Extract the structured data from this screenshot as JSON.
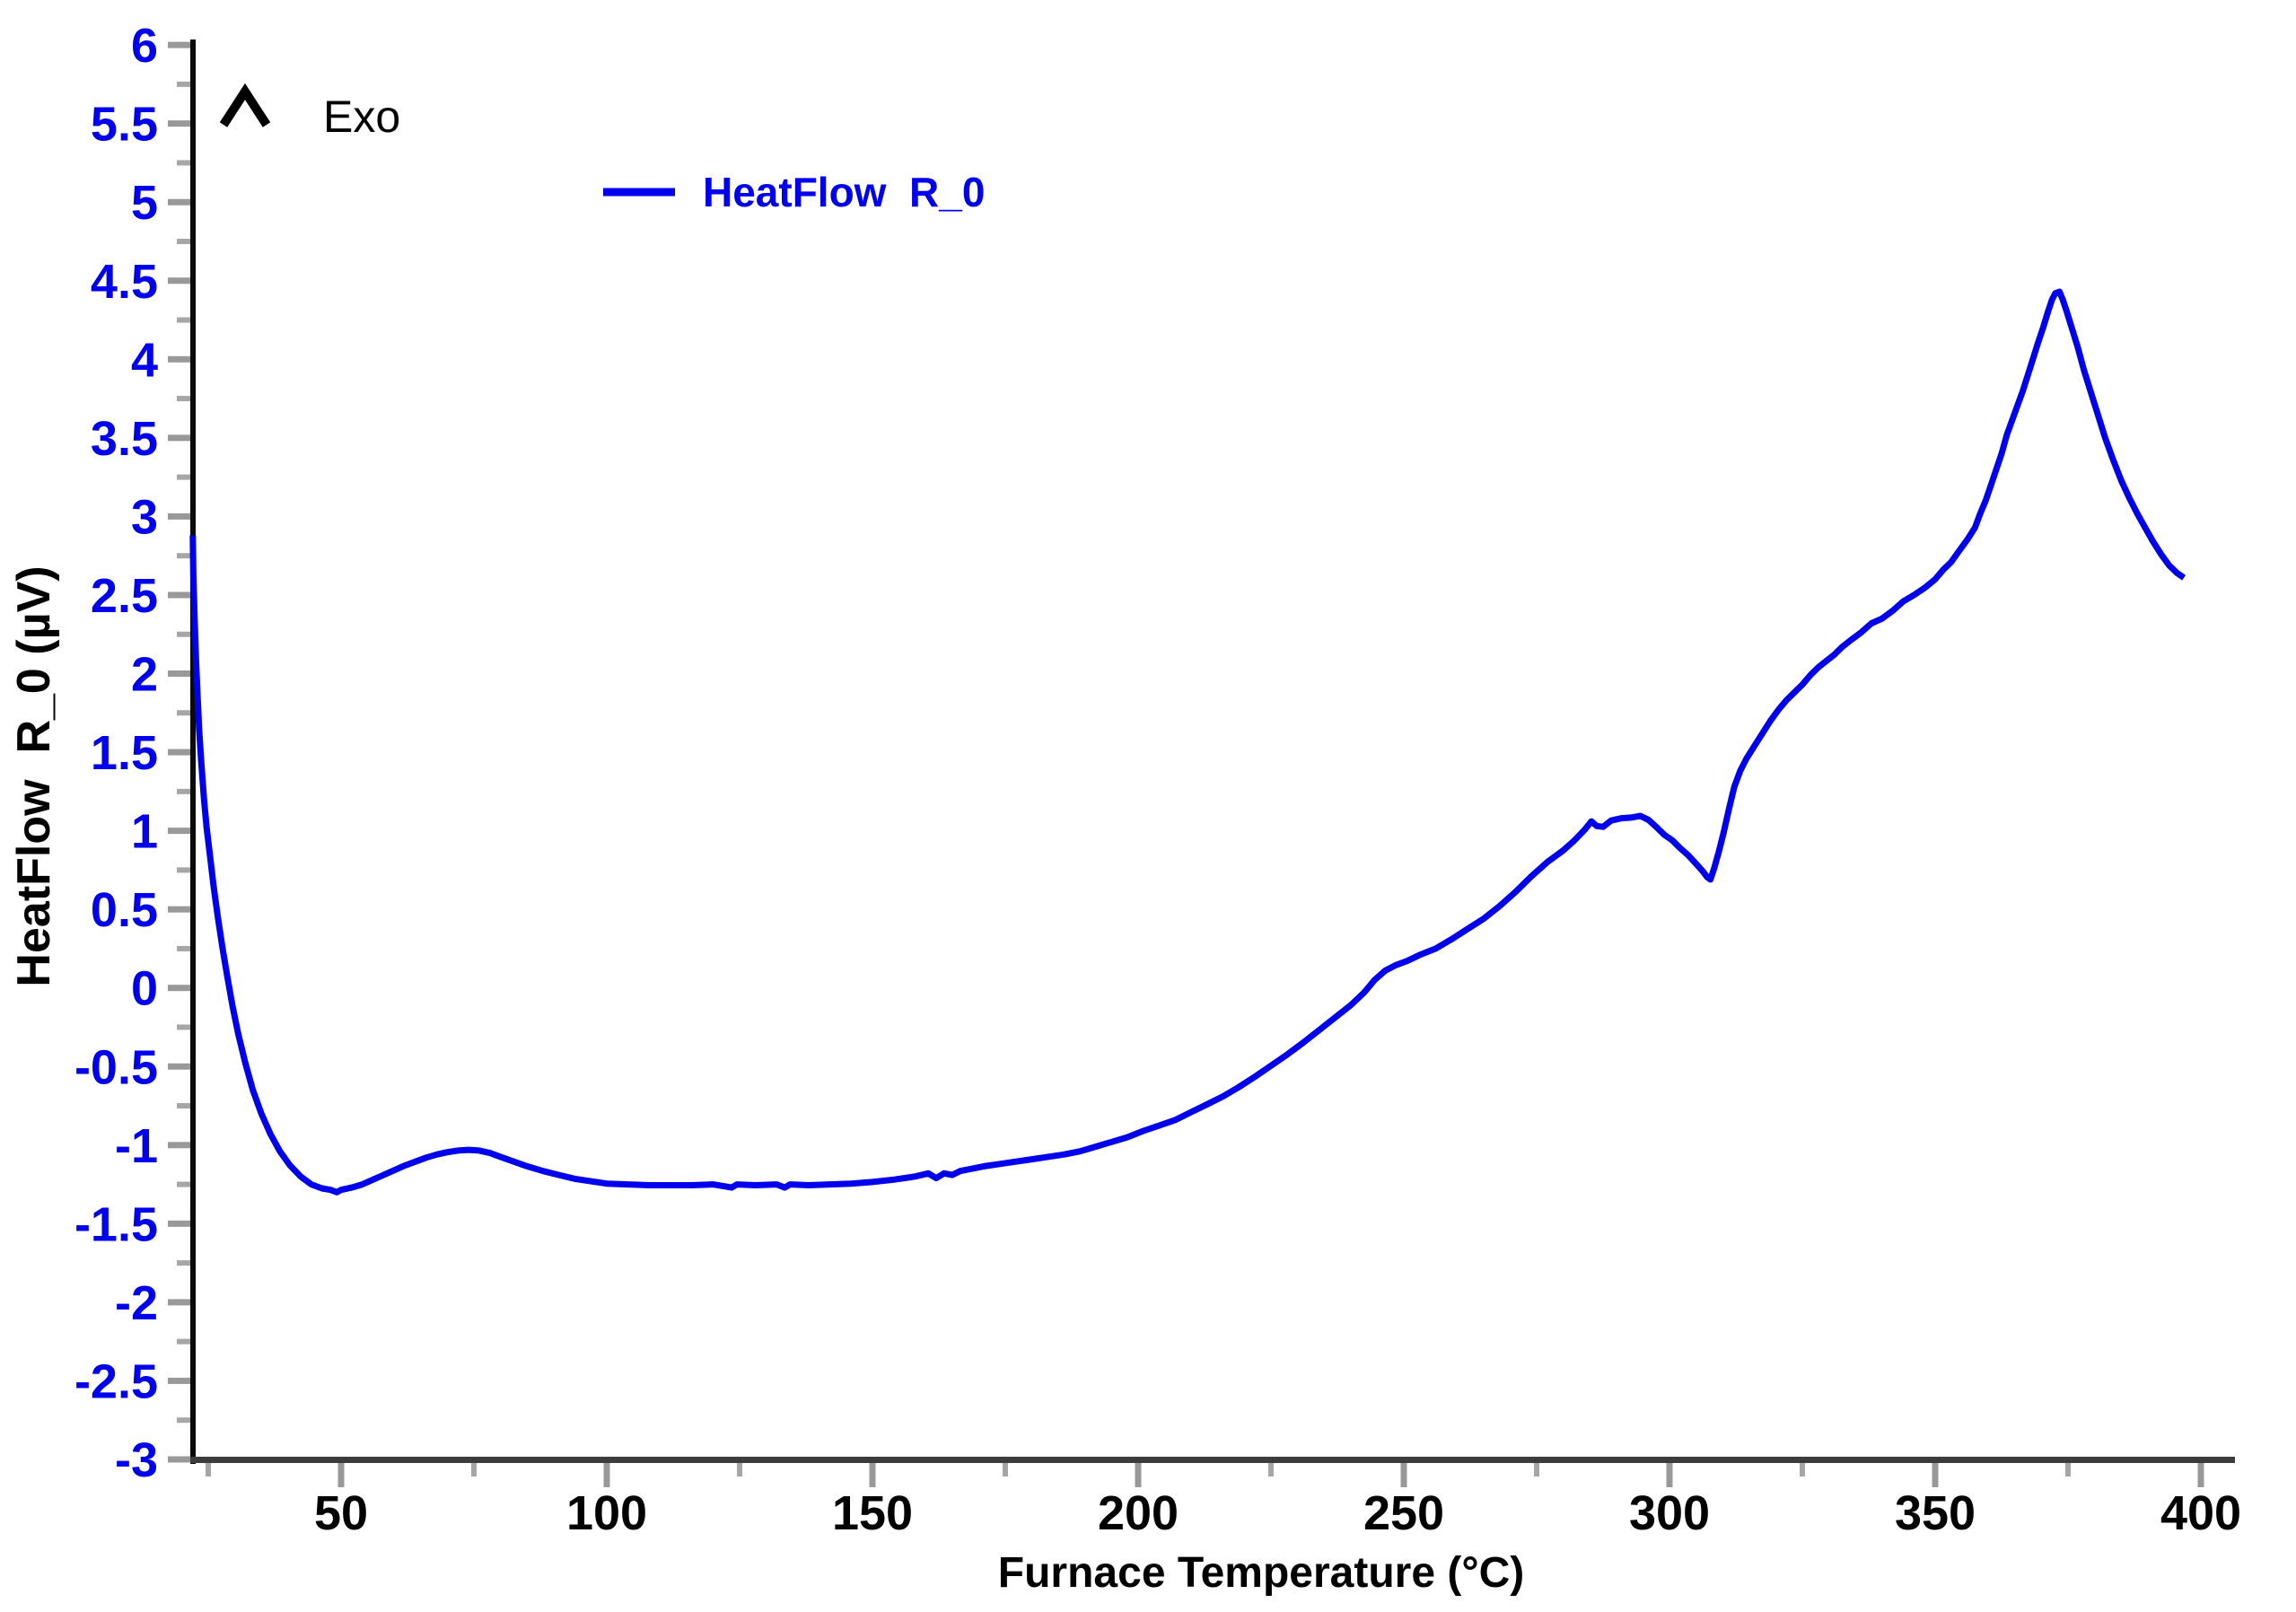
{
  "chart_data": {
    "type": "line",
    "title": "",
    "xlabel": "Furnace Temperature (°C)",
    "ylabel": "HeatFlow  R_0 (µV)",
    "xlim": [
      22,
      407
    ],
    "ylim": [
      -3,
      6
    ],
    "grid": false,
    "exo_label": "Exo",
    "legend": {
      "label": "HeatFlow  R_0",
      "position": "top-left-inside"
    },
    "colors": {
      "series": "#0000EE",
      "y_tick_text": "#0000EE",
      "x_tick_text": "#000000",
      "major_tick": "#999999",
      "minor_tick": "#a6a6a6",
      "y_axis_line": "#0a0a0a",
      "x_axis_line": "#3c3c3c",
      "background": "#ffffff"
    },
    "x_ticks": [
      {
        "value": 50,
        "label": "50"
      },
      {
        "value": 100,
        "label": "100"
      },
      {
        "value": 150,
        "label": "150"
      },
      {
        "value": 200,
        "label": "200"
      },
      {
        "value": 250,
        "label": "250"
      },
      {
        "value": 300,
        "label": "300"
      },
      {
        "value": 350,
        "label": "350"
      },
      {
        "value": 400,
        "label": "400"
      }
    ],
    "x_minor_ticks": [
      25,
      75,
      125,
      175,
      225,
      275,
      325,
      375
    ],
    "y_ticks": [
      {
        "value": 6,
        "label": "6"
      },
      {
        "value": 5.5,
        "label": "5.5"
      },
      {
        "value": 5,
        "label": "5"
      },
      {
        "value": 4.5,
        "label": "4.5"
      },
      {
        "value": 4,
        "label": "4"
      },
      {
        "value": 3.5,
        "label": "3.5"
      },
      {
        "value": 3,
        "label": "3"
      },
      {
        "value": 2.5,
        "label": "2.5"
      },
      {
        "value": 2,
        "label": "2"
      },
      {
        "value": 1.5,
        "label": "1.5"
      },
      {
        "value": 1,
        "label": "1"
      },
      {
        "value": 0.5,
        "label": "0.5"
      },
      {
        "value": 0,
        "label": "0"
      },
      {
        "value": -0.5,
        "label": "-0.5"
      },
      {
        "value": -1,
        "label": "-1"
      },
      {
        "value": -1.5,
        "label": "-1.5"
      },
      {
        "value": -2,
        "label": "-2"
      },
      {
        "value": -2.5,
        "label": "-2.5"
      },
      {
        "value": -3,
        "label": "-3"
      }
    ],
    "y_minor_ticks": [
      5.75,
      5.25,
      4.75,
      4.25,
      3.75,
      3.25,
      2.75,
      2.25,
      1.75,
      1.25,
      0.75,
      0.25,
      -0.25,
      -0.75,
      -1.25,
      -1.75,
      -2.25,
      -2.75
    ],
    "series": [
      {
        "name": "HeatFlow R_0",
        "color": "#0000EE",
        "points": [
          [
            22.1,
            2.88
          ],
          [
            22.2,
            2.62
          ],
          [
            22.35,
            2.45
          ],
          [
            22.5,
            2.28
          ],
          [
            22.7,
            2.08
          ],
          [
            23.0,
            1.85
          ],
          [
            23.3,
            1.64
          ],
          [
            23.7,
            1.43
          ],
          [
            24.2,
            1.2
          ],
          [
            24.7,
            1.02
          ],
          [
            25.3,
            0.85
          ],
          [
            26.0,
            0.65
          ],
          [
            26.8,
            0.45
          ],
          [
            27.7,
            0.25
          ],
          [
            28.6,
            0.07
          ],
          [
            29.6,
            -0.12
          ],
          [
            30.7,
            -0.3
          ],
          [
            32.0,
            -0.48
          ],
          [
            33.4,
            -0.65
          ],
          [
            35.0,
            -0.8
          ],
          [
            36.7,
            -0.93
          ],
          [
            38.5,
            -1.04
          ],
          [
            40.4,
            -1.13
          ],
          [
            42.4,
            -1.2
          ],
          [
            44.4,
            -1.25
          ],
          [
            46.4,
            -1.275
          ],
          [
            48.0,
            -1.285
          ],
          [
            49.2,
            -1.3
          ],
          [
            50.0,
            -1.285
          ],
          [
            52.0,
            -1.27
          ],
          [
            54.0,
            -1.25
          ],
          [
            56.0,
            -1.22
          ],
          [
            58.0,
            -1.19
          ],
          [
            60.0,
            -1.16
          ],
          [
            62.0,
            -1.13
          ],
          [
            64.0,
            -1.105
          ],
          [
            66.0,
            -1.08
          ],
          [
            68.0,
            -1.06
          ],
          [
            70.0,
            -1.045
          ],
          [
            72.0,
            -1.035
          ],
          [
            74.0,
            -1.03
          ],
          [
            76.0,
            -1.035
          ],
          [
            78.0,
            -1.05
          ],
          [
            80.0,
            -1.075
          ],
          [
            82.5,
            -1.105
          ],
          [
            85.0,
            -1.135
          ],
          [
            88.0,
            -1.165
          ],
          [
            91.0,
            -1.19
          ],
          [
            94.0,
            -1.215
          ],
          [
            97.0,
            -1.23
          ],
          [
            100.0,
            -1.245
          ],
          [
            104.0,
            -1.25
          ],
          [
            108.0,
            -1.255
          ],
          [
            112.0,
            -1.255
          ],
          [
            116.0,
            -1.255
          ],
          [
            120.0,
            -1.25
          ],
          [
            123.5,
            -1.27
          ],
          [
            124.5,
            -1.25
          ],
          [
            128.0,
            -1.255
          ],
          [
            132.0,
            -1.25
          ],
          [
            133.5,
            -1.27
          ],
          [
            134.5,
            -1.25
          ],
          [
            138.0,
            -1.255
          ],
          [
            142.0,
            -1.25
          ],
          [
            146.0,
            -1.245
          ],
          [
            150.0,
            -1.235
          ],
          [
            154.0,
            -1.22
          ],
          [
            158.0,
            -1.2
          ],
          [
            160.5,
            -1.18
          ],
          [
            162.0,
            -1.21
          ],
          [
            163.5,
            -1.18
          ],
          [
            165.0,
            -1.19
          ],
          [
            166.5,
            -1.165
          ],
          [
            168.0,
            -1.155
          ],
          [
            171.0,
            -1.135
          ],
          [
            174.0,
            -1.12
          ],
          [
            177.0,
            -1.105
          ],
          [
            180.0,
            -1.09
          ],
          [
            183.0,
            -1.075
          ],
          [
            186.0,
            -1.06
          ],
          [
            189.0,
            -1.04
          ],
          [
            192.0,
            -1.01
          ],
          [
            195.0,
            -0.98
          ],
          [
            198.0,
            -0.95
          ],
          [
            201.0,
            -0.91
          ],
          [
            204.0,
            -0.875
          ],
          [
            207.0,
            -0.84
          ],
          [
            210.0,
            -0.79
          ],
          [
            213.0,
            -0.74
          ],
          [
            216.0,
            -0.69
          ],
          [
            219.0,
            -0.63
          ],
          [
            222.0,
            -0.565
          ],
          [
            225.0,
            -0.495
          ],
          [
            228.0,
            -0.425
          ],
          [
            231.0,
            -0.35
          ],
          [
            234.0,
            -0.27
          ],
          [
            237.0,
            -0.19
          ],
          [
            240.0,
            -0.11
          ],
          [
            242.5,
            -0.03
          ],
          [
            244.5,
            0.05
          ],
          [
            246.5,
            0.11
          ],
          [
            248.5,
            0.145
          ],
          [
            250.5,
            0.17
          ],
          [
            253.0,
            0.21
          ],
          [
            256.0,
            0.25
          ],
          [
            259.0,
            0.31
          ],
          [
            262.0,
            0.375
          ],
          [
            265.0,
            0.44
          ],
          [
            268.0,
            0.52
          ],
          [
            271.0,
            0.61
          ],
          [
            274.0,
            0.71
          ],
          [
            277.0,
            0.8
          ],
          [
            280.0,
            0.875
          ],
          [
            282.0,
            0.935
          ],
          [
            284.0,
            1.005
          ],
          [
            285.3,
            1.06
          ],
          [
            286.3,
            1.03
          ],
          [
            287.5,
            1.025
          ],
          [
            289.0,
            1.065
          ],
          [
            291.0,
            1.08
          ],
          [
            293.0,
            1.085
          ],
          [
            294.5,
            1.095
          ],
          [
            296.0,
            1.07
          ],
          [
            297.5,
            1.025
          ],
          [
            299.0,
            0.975
          ],
          [
            300.5,
            0.94
          ],
          [
            302.0,
            0.89
          ],
          [
            303.5,
            0.845
          ],
          [
            305.0,
            0.79
          ],
          [
            306.2,
            0.745
          ],
          [
            307.1,
            0.705
          ],
          [
            307.7,
            0.69
          ],
          [
            308.4,
            0.76
          ],
          [
            309.3,
            0.87
          ],
          [
            310.2,
            0.99
          ],
          [
            311.2,
            1.14
          ],
          [
            312.2,
            1.28
          ],
          [
            313.3,
            1.38
          ],
          [
            314.5,
            1.46
          ],
          [
            316.0,
            1.54
          ],
          [
            317.5,
            1.62
          ],
          [
            319.0,
            1.7
          ],
          [
            320.5,
            1.77
          ],
          [
            322.0,
            1.83
          ],
          [
            323.5,
            1.88
          ],
          [
            325.0,
            1.93
          ],
          [
            326.5,
            1.99
          ],
          [
            328.0,
            2.04
          ],
          [
            329.5,
            2.08
          ],
          [
            331.0,
            2.12
          ],
          [
            332.5,
            2.17
          ],
          [
            334.0,
            2.21
          ],
          [
            336.0,
            2.26
          ],
          [
            338.0,
            2.32
          ],
          [
            340.0,
            2.35
          ],
          [
            342.0,
            2.4
          ],
          [
            344.0,
            2.46
          ],
          [
            346.0,
            2.5
          ],
          [
            348.0,
            2.545
          ],
          [
            350.0,
            2.6
          ],
          [
            351.5,
            2.66
          ],
          [
            353.0,
            2.71
          ],
          [
            354.5,
            2.78
          ],
          [
            356.0,
            2.85
          ],
          [
            357.5,
            2.93
          ],
          [
            358.5,
            3.02
          ],
          [
            359.5,
            3.1
          ],
          [
            360.5,
            3.2
          ],
          [
            361.5,
            3.3
          ],
          [
            362.5,
            3.4
          ],
          [
            363.5,
            3.52
          ],
          [
            365.0,
            3.66
          ],
          [
            366.5,
            3.8
          ],
          [
            368.0,
            3.96
          ],
          [
            369.3,
            4.1
          ],
          [
            370.3,
            4.2
          ],
          [
            371.2,
            4.3
          ],
          [
            372.0,
            4.38
          ],
          [
            372.6,
            4.42
          ],
          [
            373.4,
            4.43
          ],
          [
            374.0,
            4.38
          ],
          [
            374.8,
            4.3
          ],
          [
            375.8,
            4.19
          ],
          [
            376.8,
            4.08
          ],
          [
            378.0,
            3.93
          ],
          [
            379.2,
            3.8
          ],
          [
            380.5,
            3.66
          ],
          [
            382.0,
            3.5
          ],
          [
            383.5,
            3.36
          ],
          [
            385.0,
            3.23
          ],
          [
            386.5,
            3.12
          ],
          [
            388.0,
            3.02
          ],
          [
            389.5,
            2.93
          ],
          [
            391.0,
            2.84
          ],
          [
            392.5,
            2.76
          ],
          [
            394.0,
            2.69
          ],
          [
            395.5,
            2.64
          ],
          [
            396.8,
            2.61
          ]
        ]
      }
    ]
  }
}
